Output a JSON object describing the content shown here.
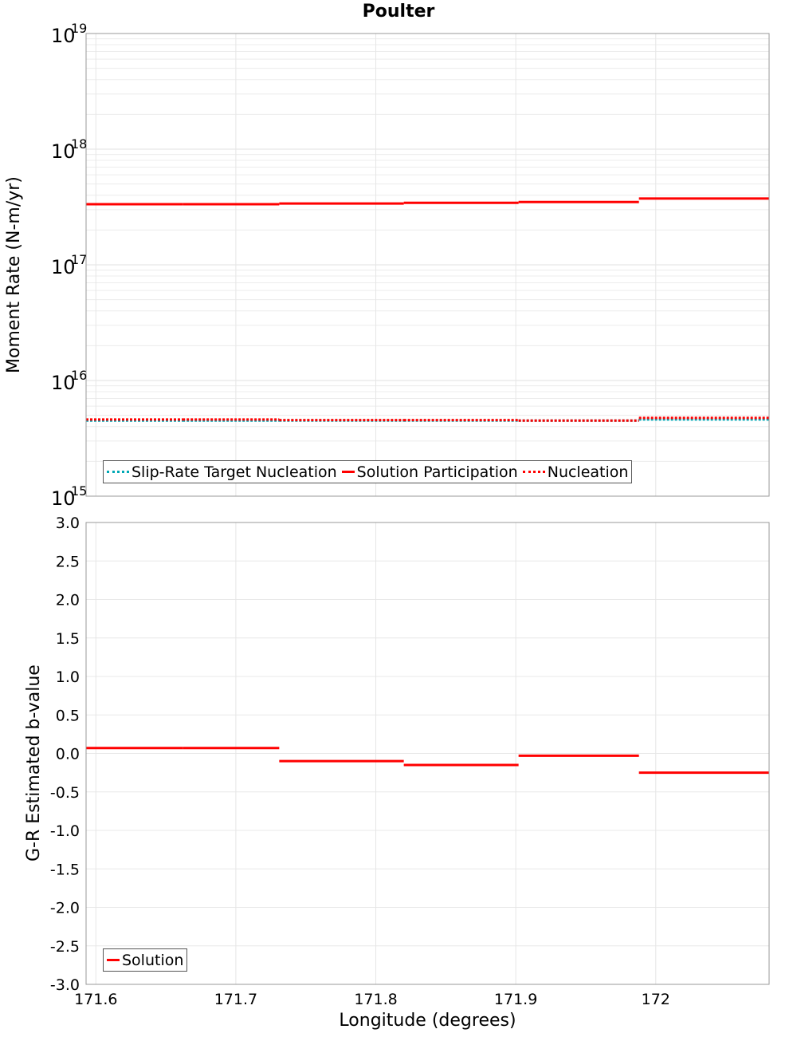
{
  "title": "Poulter",
  "top_panel": {
    "ylabel": "Moment Rate (N-m/yr)",
    "yticks": [
      {
        "base": "10",
        "exp": "19"
      },
      {
        "base": "10",
        "exp": "18"
      },
      {
        "base": "10",
        "exp": "17"
      },
      {
        "base": "10",
        "exp": "16"
      },
      {
        "base": "10",
        "exp": "15"
      }
    ],
    "legend": [
      {
        "label": "Slip-Rate Target Nucleation",
        "color": "#00a8b5",
        "style": "dotted"
      },
      {
        "label": "Solution Participation",
        "color": "#ff0000",
        "style": "solid"
      },
      {
        "label": "Nucleation",
        "color": "#ff0000",
        "style": "dotted"
      }
    ]
  },
  "bottom_panel": {
    "ylabel": "G-R Estimated b-value",
    "yticks": [
      "3.0",
      "2.5",
      "2.0",
      "1.5",
      "1.0",
      "0.5",
      "0.0",
      "-0.5",
      "-1.0",
      "-1.5",
      "-2.0",
      "-2.5",
      "-3.0"
    ],
    "legend": [
      {
        "label": "Solution",
        "color": "#ff0000",
        "style": "solid"
      }
    ]
  },
  "xaxis": {
    "label": "Longitude (degrees)",
    "ticks": [
      "171.6",
      "171.7",
      "171.8",
      "171.9",
      "172"
    ]
  },
  "chart_data": [
    {
      "type": "line",
      "title": "Poulter",
      "xlabel": "Longitude (degrees)",
      "ylabel": "Moment Rate (N-m/yr)",
      "yscale": "log",
      "ylim": [
        1000000000000000.0,
        1e+19
      ],
      "xlim": [
        171.593,
        172.081
      ],
      "grid": true,
      "legend_position": "lower-left",
      "segment_edges": [
        171.593,
        171.662,
        171.731,
        171.82,
        171.902,
        171.988,
        172.081
      ],
      "series": [
        {
          "name": "Slip-Rate Target Nucleation",
          "style": "dotted",
          "color": "#00a8b5",
          "values": [
            4500000000000000.0,
            4500000000000000.0,
            4500000000000000.0,
            4500000000000000.0,
            4500000000000000.0,
            4600000000000000.0
          ]
        },
        {
          "name": "Solution Participation",
          "style": "solid",
          "color": "#ff0000",
          "values": [
            3.34e+17,
            3.34e+17,
            3.39e+17,
            3.44e+17,
            3.49e+17,
            3.74e+17
          ]
        },
        {
          "name": "Nucleation",
          "style": "dotted",
          "color": "#ff0000",
          "values": [
            4600000000000000.0,
            4600000000000000.0,
            4550000000000000.0,
            4550000000000000.0,
            4500000000000000.0,
            4750000000000000.0
          ]
        }
      ]
    },
    {
      "type": "line",
      "title": "",
      "xlabel": "Longitude (degrees)",
      "ylabel": "G-R Estimated b-value",
      "ylim": [
        -3.0,
        3.0
      ],
      "xlim": [
        171.593,
        172.081
      ],
      "grid": true,
      "legend_position": "lower-left",
      "segment_edges": [
        171.593,
        171.662,
        171.731,
        171.82,
        171.902,
        171.988,
        172.081
      ],
      "series": [
        {
          "name": "Solution",
          "style": "solid",
          "color": "#ff0000",
          "values": [
            0.07,
            0.07,
            -0.1,
            -0.15,
            -0.03,
            -0.25
          ]
        }
      ]
    }
  ]
}
